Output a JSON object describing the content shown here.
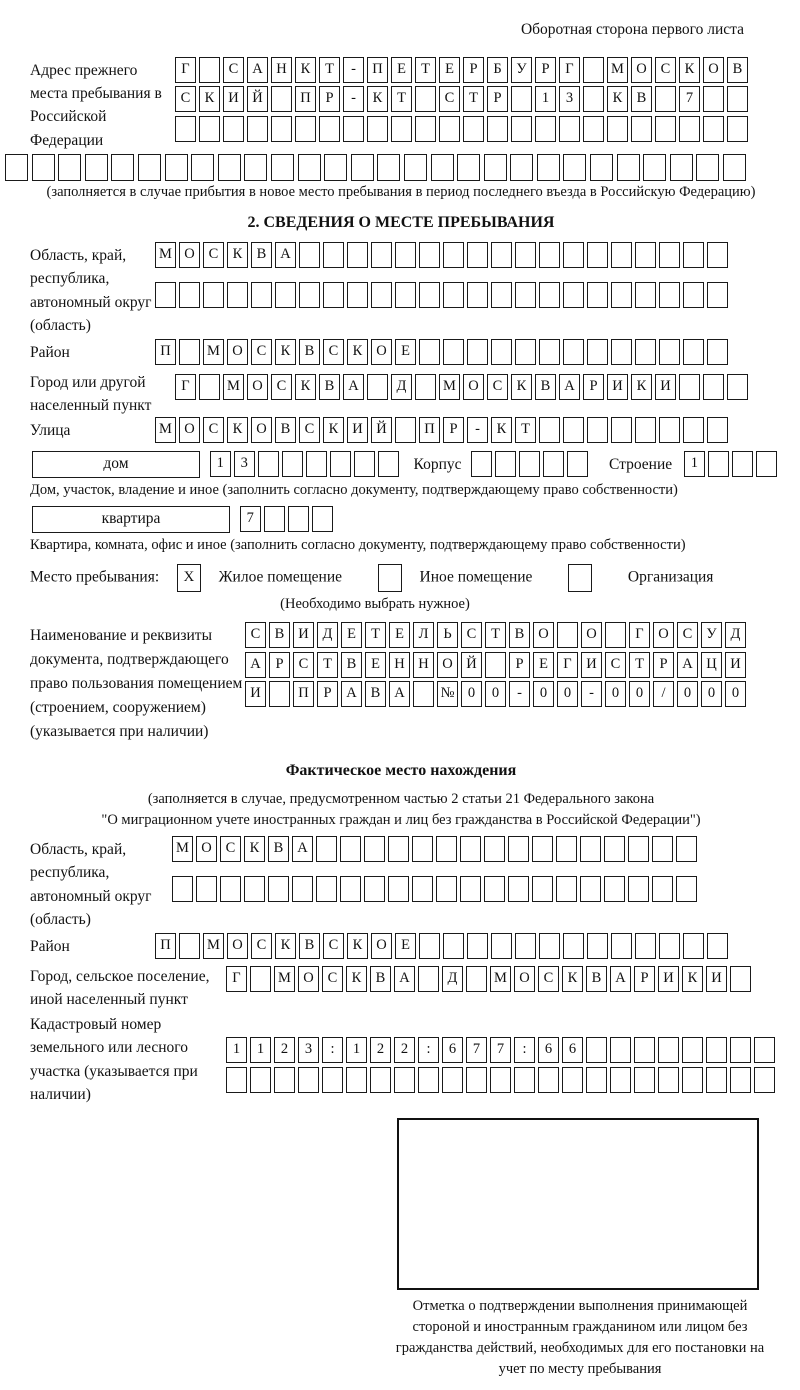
{
  "header": {
    "back_side_note": "Оборотная сторона первого листа"
  },
  "prev_address": {
    "label": "Адрес прежнего места пребывания в Российской Федерации",
    "rows": [
      {
        "text": "Г САНКТ-ПЕТЕРБУРГ МОСКОВ",
        "count": 24
      },
      {
        "text": "СКИЙ ПР-КТ СТР 13 КВ 7",
        "count": 24
      },
      {
        "text": "",
        "count": 24
      }
    ],
    "overflow_row": {
      "text": "",
      "count": 28
    },
    "note": "(заполняется в случае прибытия в новое место пребывания в период последнего въезда в Российскую Федерацию)"
  },
  "section2": {
    "title": "2. СВЕДЕНИЯ О МЕСТЕ ПРЕБЫВАНИЯ",
    "region": {
      "label": "Область, край, республика, автономный округ (область)",
      "rows": [
        {
          "text": "МОСКВА",
          "count": 24
        },
        {
          "text": "",
          "count": 24
        }
      ]
    },
    "district": {
      "label": "Район",
      "row": {
        "text": "П МОСКВСКОЕ",
        "count": 24
      }
    },
    "city": {
      "label": "Город или другой населенный пункт",
      "row": {
        "text": "Г МОСКВА Д МОСКВАРИКИ",
        "count": 24
      }
    },
    "street": {
      "label": "Улица",
      "row": {
        "text": "МОСКОВСКИЙ ПР-КТ",
        "count": 24
      }
    },
    "house": {
      "label": "дом",
      "cells": {
        "text": "13",
        "count": 8
      },
      "korpus_label": "Корпус",
      "korpus_cells": {
        "text": "",
        "count": 5
      },
      "stroenie_label": "Строение",
      "stroenie_cells": {
        "text": "1",
        "count": 4
      },
      "note": "Дом, участок, владение и иное (заполнить согласно документу, подтверждающему право собственности)"
    },
    "apartment": {
      "label": "квартира",
      "cells": {
        "text": "7",
        "count": 4
      },
      "note": "Квартира, комната, офис и иное (заполнить согласно документу, подтверждающему право собственности)"
    },
    "stay_type": {
      "label": "Место пребывания:",
      "checked_mark": "X",
      "options": [
        "Жилое помещение",
        "Иное помещение",
        "Организация"
      ],
      "note": "(Необходимо выбрать нужное)"
    },
    "document": {
      "label": "Наименование и реквизиты документа, подтверждающего право пользования помещением (строением, сооружением) (указывается при наличии)",
      "rows": [
        {
          "text": "СВИДЕТЕЛЬСТВО О ГОСУД",
          "count": 21
        },
        {
          "text": "АРСТВЕННОЙ РЕГИСТРАЦИ",
          "count": 21
        },
        {
          "text": "И ПРАВА №00-00-00/000",
          "count": 21
        }
      ]
    }
  },
  "actual_location": {
    "title": "Фактическое место нахождения",
    "note_line1": "(заполняется в случае, предусмотренном частью 2 статьи 21 Федерального закона",
    "note_line2": "\"О миграционном учете иностранных граждан и лиц без гражданства в Российской Федерации\")",
    "region": {
      "label": "Область, край, республика, автономный округ (область)",
      "rows": [
        {
          "text": "МОСКВА",
          "count": 22
        },
        {
          "text": "",
          "count": 22
        }
      ]
    },
    "district": {
      "label": "Район",
      "row": {
        "text": "П МОСКВСКОЕ",
        "count": 24
      }
    },
    "city": {
      "label": "Город, сельское поселение, иной населенный пункт",
      "row": {
        "text": "Г МОСКВА Д МОСКВАРИКИ",
        "count": 22
      }
    },
    "cadastral": {
      "label": "Кадастровый номер земельного или лесного участка (указывается при наличии)",
      "rows": [
        {
          "text": "1123:122:677:66",
          "count": 23
        },
        {
          "text": "",
          "count": 23
        }
      ]
    },
    "stamp_note": "Отметка о подтверждении выполнения принимающей стороной и иностранным гражданином или лицом без гражданства действий, необходимых для его постановки на учет по месту пребывания"
  }
}
